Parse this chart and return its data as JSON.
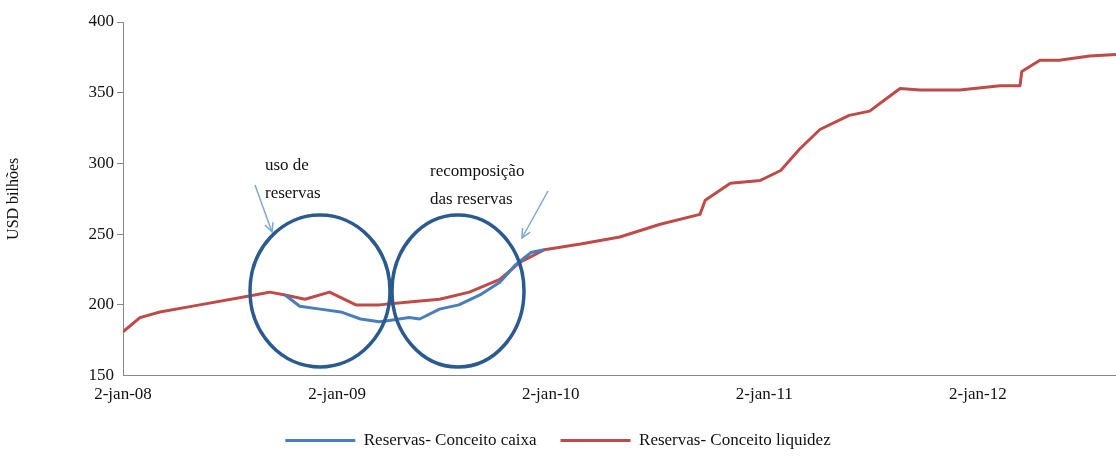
{
  "chart_data": {
    "type": "line",
    "ylabel": "USD bilhões",
    "x": [
      "2008-01-02",
      "2008-01-31",
      "2008-03-05",
      "2008-05-12",
      "2008-07-19",
      "2008-09-09",
      "2008-10-05",
      "2008-11-08",
      "2008-12-20",
      "2009-02-03",
      "2009-03-15",
      "2009-05-05",
      "2009-06-26",
      "2009-08-16",
      "2009-10-07",
      "2009-11-10",
      "2009-12-22",
      "2010-02-22",
      "2010-04-30",
      "2010-07-08",
      "2010-09-14",
      "2010-09-23",
      "2010-11-05",
      "2010-12-26",
      "2011-01-30",
      "2011-03-03",
      "2011-04-07",
      "2011-05-27",
      "2011-07-01",
      "2011-07-27",
      "2011-08-22",
      "2011-09-25",
      "2011-10-29",
      "2011-12-02",
      "2012-02-09",
      "2012-03-14",
      "2012-03-17",
      "2012-04-17",
      "2012-05-20",
      "2012-07-11",
      "2012-08-25"
    ],
    "series": [
      {
        "name": "Reservas- Conceito caixa",
        "color": "#4a7ebb",
        "x": [
          "2008-10-05",
          "2008-10-30",
          "2008-12-04",
          "2009-01-08",
          "2009-02-11",
          "2009-03-15",
          "2009-04-01",
          "2009-05-05",
          "2009-05-23",
          "2009-06-26",
          "2009-07-29",
          "2009-09-03",
          "2009-10-07",
          "2009-11-02",
          "2009-11-29",
          "2009-12-22"
        ],
        "values": [
          207,
          199,
          197,
          195,
          190,
          188,
          189,
          191,
          190,
          197,
          200,
          207,
          216,
          228,
          237,
          239
        ]
      },
      {
        "name": "Reservas- Conceito liquidez",
        "color": "#be4b48",
        "values": [
          181,
          191,
          195,
          200,
          205,
          209,
          207,
          204,
          209,
          200,
          200,
          202,
          204,
          209,
          218,
          230,
          239,
          243,
          248,
          257,
          264,
          274,
          286,
          288,
          295,
          310,
          324,
          334,
          337,
          345,
          353,
          352,
          352,
          352,
          355,
          355,
          365,
          373,
          373,
          376,
          377
        ]
      }
    ],
    "xlim": [
      "2008-01-02",
      "2012-08-25"
    ],
    "xticks": [
      {
        "value": "2008-01-02",
        "label": "2-jan-08"
      },
      {
        "value": "2009-01-02",
        "label": "2-jan-09"
      },
      {
        "value": "2010-01-02",
        "label": "2-jan-10"
      },
      {
        "value": "2011-01-02",
        "label": "2-jan-11"
      },
      {
        "value": "2012-01-02",
        "label": "2-jan-12"
      }
    ],
    "ylim": [
      150,
      400
    ],
    "yticks": [
      150,
      200,
      250,
      300,
      350,
      400
    ],
    "grid": false,
    "legend": "bottom",
    "marker": "none",
    "line_style": "solid",
    "annotations": [
      "uso de reservas",
      "recomposição das reservas"
    ]
  }
}
